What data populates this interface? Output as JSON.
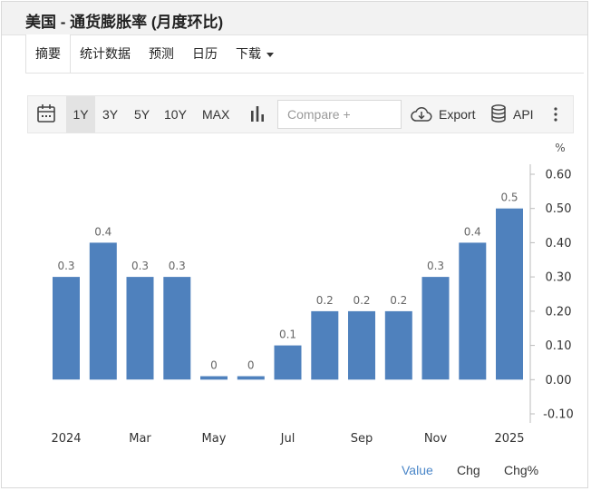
{
  "title": "美国 - 通货膨胀率 (月度环比)",
  "tabs": [
    {
      "label": "摘要",
      "active": true
    },
    {
      "label": "统计数据"
    },
    {
      "label": "预测"
    },
    {
      "label": "日历"
    },
    {
      "label": "下载"
    }
  ],
  "toolbar": {
    "ranges": [
      "1Y",
      "3Y",
      "5Y",
      "10Y",
      "MAX"
    ],
    "active_range": "1Y",
    "compare_placeholder": "Compare +",
    "export_label": "Export",
    "api_label": "API"
  },
  "chart_data": {
    "type": "bar",
    "unit": "%",
    "values": [
      0.3,
      0.4,
      0.3,
      0.3,
      0.0,
      0.0,
      0.1,
      0.2,
      0.2,
      0.2,
      0.3,
      0.4,
      0.5
    ],
    "bar_heights": [
      0.3,
      0.4,
      0.3,
      0.3,
      0.01,
      0.01,
      0.1,
      0.2,
      0.2,
      0.2,
      0.3,
      0.4,
      0.5
    ],
    "data_labels": [
      "0.3",
      "0.4",
      "0.3",
      "0.3",
      "0",
      "0",
      "0.1",
      "0.2",
      "0.2",
      "0.2",
      "0.3",
      "0.4",
      "0.5"
    ],
    "x_tick_labels": [
      "2024",
      "Mar",
      "May",
      "Jul",
      "Sep",
      "Nov",
      "2025"
    ],
    "y_ticks": [
      0.6,
      0.5,
      0.4,
      0.3,
      0.2,
      0.1,
      0.0,
      -0.1
    ],
    "y_tick_labels": [
      "0.60",
      "0.50",
      "0.40",
      "0.30",
      "0.20",
      "0.10",
      "0.00",
      "-0.10"
    ],
    "ylim": [
      -0.1,
      0.6
    ],
    "bar_color": "#4f81bd",
    "y_axis_side": "right",
    "grid": false
  },
  "view_modes": {
    "items": [
      "Value",
      "Chg",
      "Chg%"
    ],
    "active": "Value",
    "active_color": "#4a86c8"
  }
}
